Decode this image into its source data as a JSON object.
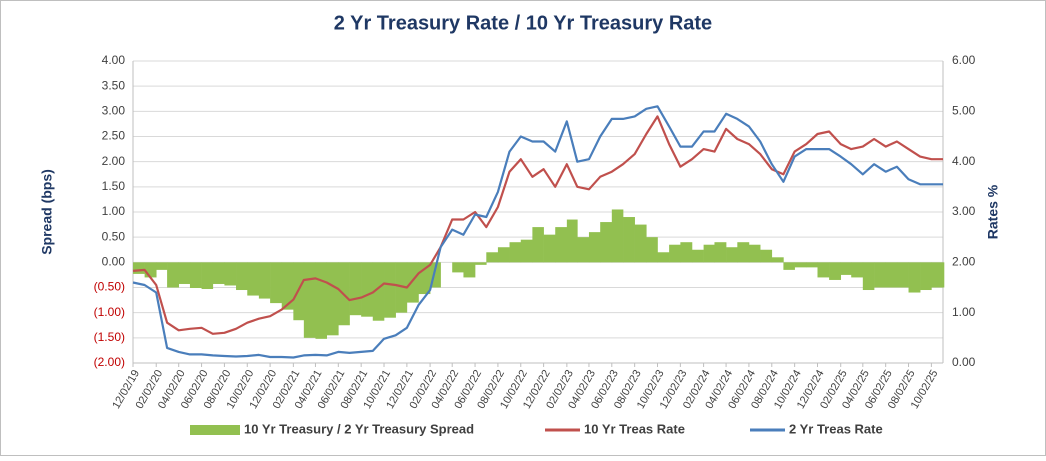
{
  "chart_data": {
    "type": "bar-line",
    "title": "2 Yr Treasury Rate / 10 Yr Treasury Rate",
    "y_label": "Spread (bps)",
    "y2_label": "Rates %",
    "x": [
      "12/02/19",
      "01/02/20",
      "02/02/20",
      "03/02/20",
      "04/02/20",
      "05/02/20",
      "06/02/20",
      "07/02/20",
      "08/02/20",
      "09/02/20",
      "10/02/20",
      "11/02/20",
      "12/02/20",
      "01/02/21",
      "02/02/21",
      "03/02/21",
      "04/02/21",
      "05/02/21",
      "06/02/21",
      "07/02/21",
      "08/02/21",
      "09/02/21",
      "10/02/21",
      "11/02/21",
      "12/02/21",
      "01/02/22",
      "02/02/22",
      "03/02/22",
      "04/02/22",
      "05/02/22",
      "06/02/22",
      "07/02/22",
      "08/02/22",
      "09/02/22",
      "10/02/22",
      "11/02/22",
      "12/02/22",
      "01/02/23",
      "02/02/23",
      "03/02/23",
      "04/02/23",
      "05/02/23",
      "06/02/23",
      "07/02/23",
      "08/02/23",
      "09/02/23",
      "10/02/23",
      "11/02/23",
      "12/02/23",
      "01/02/24",
      "02/02/24",
      "03/02/24",
      "04/02/24",
      "05/02/24",
      "06/02/24",
      "07/02/24",
      "08/02/24",
      "09/02/24",
      "10/02/24",
      "11/02/24",
      "12/02/24",
      "01/02/25",
      "02/02/25",
      "03/02/25",
      "04/02/25",
      "05/02/25",
      "06/02/25",
      "07/02/25",
      "08/02/25",
      "09/02/25",
      "10/02/25",
      "11/02/25"
    ],
    "xlim": [
      "12/02/19",
      "11/02/25"
    ],
    "xticks": [
      "12/02/19",
      "02/02/20",
      "04/02/20",
      "06/02/20",
      "08/02/20",
      "10/02/20",
      "12/02/20",
      "02/02/21",
      "04/02/21",
      "06/02/21",
      "08/02/21",
      "10/02/21",
      "12/02/21",
      "02/02/22",
      "04/02/22",
      "06/02/22",
      "08/02/22",
      "10/02/22",
      "12/02/22",
      "02/02/23",
      "04/02/23",
      "06/02/23",
      "08/02/23",
      "10/02/23",
      "12/02/23",
      "02/02/24",
      "04/02/24",
      "06/02/24",
      "08/02/24",
      "10/02/24",
      "12/02/24",
      "02/02/25",
      "04/02/25",
      "06/02/25",
      "08/02/25",
      "10/02/25"
    ],
    "ylim": [
      -2,
      4
    ],
    "yticks": [
      {
        "value": -2,
        "label": "(2.00)"
      },
      {
        "value": -1.5,
        "label": "(1.50)"
      },
      {
        "value": -1,
        "label": "(1.00)"
      },
      {
        "value": -0.5,
        "label": "(0.50)"
      },
      {
        "value": 0,
        "label": "0.00"
      },
      {
        "value": 0.5,
        "label": "0.50"
      },
      {
        "value": 1,
        "label": "1.00"
      },
      {
        "value": 1.5,
        "label": "1.50"
      },
      {
        "value": 2,
        "label": "2.00"
      },
      {
        "value": 2.5,
        "label": "2.50"
      },
      {
        "value": 3,
        "label": "3.00"
      },
      {
        "value": 3.5,
        "label": "3.50"
      },
      {
        "value": 4,
        "label": "4.00"
      }
    ],
    "negative_tick_color": "#c00000",
    "y2lim": [
      0,
      6
    ],
    "y2ticks": [
      {
        "value": 0,
        "label": "0.00"
      },
      {
        "value": 1,
        "label": "1.00"
      },
      {
        "value": 2,
        "label": "2.00"
      },
      {
        "value": 3,
        "label": "3.00"
      },
      {
        "value": 4,
        "label": "4.00"
      },
      {
        "value": 5,
        "label": "5.00"
      },
      {
        "value": 6,
        "label": "6.00"
      }
    ],
    "grid": true,
    "series": [
      {
        "name": "10 Yr Treasury / 2 Yr Treasury Spread",
        "color": "#92c050",
        "kind": "bar",
        "values": [
          -0.23,
          -0.3,
          -0.15,
          -0.5,
          -0.43,
          -0.51,
          -0.53,
          -0.43,
          -0.46,
          -0.55,
          -0.66,
          -0.72,
          -0.81,
          -0.94,
          -1.15,
          -1.5,
          -1.52,
          -1.45,
          -1.25,
          -1.05,
          -1.08,
          -1.16,
          -1.1,
          -1.0,
          -0.8,
          -0.63,
          -0.5,
          0.0,
          -0.2,
          -0.3,
          -0.05,
          0.2,
          0.3,
          0.4,
          0.45,
          0.7,
          0.55,
          0.7,
          0.85,
          0.5,
          0.6,
          0.8,
          1.05,
          0.9,
          0.75,
          0.5,
          0.2,
          0.35,
          0.4,
          0.25,
          0.35,
          0.4,
          0.3,
          0.4,
          0.35,
          0.25,
          0.1,
          -0.15,
          -0.1,
          -0.1,
          -0.3,
          -0.35,
          -0.25,
          -0.3,
          -0.55,
          -0.5,
          -0.5,
          -0.5,
          -0.6,
          -0.55,
          -0.5,
          -0.5
        ]
      },
      {
        "name": "10 Yr Treas Rate",
        "color": "#c0504d",
        "kind": "line",
        "axis": "y2",
        "values": [
          1.83,
          1.85,
          1.55,
          0.8,
          0.65,
          0.68,
          0.7,
          0.58,
          0.6,
          0.68,
          0.8,
          0.88,
          0.93,
          1.06,
          1.26,
          1.65,
          1.68,
          1.6,
          1.47,
          1.25,
          1.3,
          1.4,
          1.58,
          1.55,
          1.5,
          1.78,
          1.95,
          2.3,
          2.85,
          2.85,
          3.0,
          2.7,
          3.1,
          3.8,
          4.05,
          3.7,
          3.85,
          3.5,
          3.95,
          3.5,
          3.45,
          3.7,
          3.8,
          3.95,
          4.15,
          4.55,
          4.9,
          4.35,
          3.9,
          4.05,
          4.25,
          4.2,
          4.65,
          4.45,
          4.35,
          4.15,
          3.85,
          3.75,
          4.2,
          4.35,
          4.55,
          4.6,
          4.35,
          4.25,
          4.3,
          4.45,
          4.3,
          4.4,
          4.25,
          4.1,
          4.05,
          4.05
        ]
      },
      {
        "name": "2 Yr Treas Rate",
        "color": "#4a7ebb",
        "kind": "line",
        "axis": "y2",
        "values": [
          1.6,
          1.55,
          1.4,
          0.3,
          0.22,
          0.17,
          0.17,
          0.15,
          0.14,
          0.13,
          0.14,
          0.16,
          0.12,
          0.12,
          0.11,
          0.15,
          0.16,
          0.15,
          0.22,
          0.2,
          0.22,
          0.24,
          0.48,
          0.55,
          0.7,
          1.15,
          1.45,
          2.3,
          2.65,
          2.55,
          2.95,
          2.9,
          3.4,
          4.2,
          4.5,
          4.4,
          4.4,
          4.2,
          4.8,
          4.0,
          4.05,
          4.5,
          4.85,
          4.85,
          4.9,
          5.05,
          5.1,
          4.7,
          4.3,
          4.3,
          4.6,
          4.6,
          4.95,
          4.85,
          4.7,
          4.4,
          3.95,
          3.6,
          4.1,
          4.25,
          4.25,
          4.25,
          4.1,
          3.95,
          3.75,
          3.95,
          3.8,
          3.9,
          3.65,
          3.55,
          3.55,
          3.55
        ]
      }
    ]
  }
}
